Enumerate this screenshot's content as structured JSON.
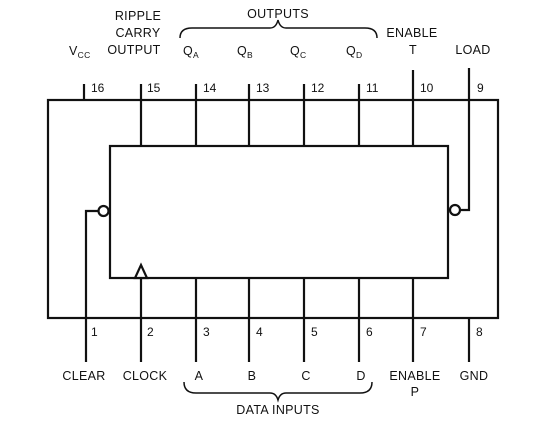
{
  "top_labels": {
    "vcc_v": "V",
    "vcc_sub": "CC",
    "ripple_line1": "RIPPLE",
    "ripple_line2": "CARRY",
    "ripple_line3": "OUTPUT",
    "outputs": "OUTPUTS",
    "qa_q": "Q",
    "qa_sub": "A",
    "qb_q": "Q",
    "qb_sub": "B",
    "qc_q": "Q",
    "qc_sub": "C",
    "qd_q": "Q",
    "qd_sub": "D",
    "enable_t_line1": "ENABLE",
    "enable_t_line2": "T",
    "load": "LOAD"
  },
  "top_pins": [
    "16",
    "15",
    "14",
    "13",
    "12",
    "11",
    "10",
    "9"
  ],
  "bottom_pins": [
    "1",
    "2",
    "3",
    "4",
    "5",
    "6",
    "7",
    "8"
  ],
  "bottom_labels": {
    "clear": "CLEAR",
    "clock": "CLOCK",
    "a": "A",
    "b": "B",
    "c": "C",
    "d": "D",
    "enable_p_line1": "ENABLE",
    "enable_p_line2": "P",
    "gnd": "GND",
    "data_inputs": "DATA INPUTS"
  }
}
